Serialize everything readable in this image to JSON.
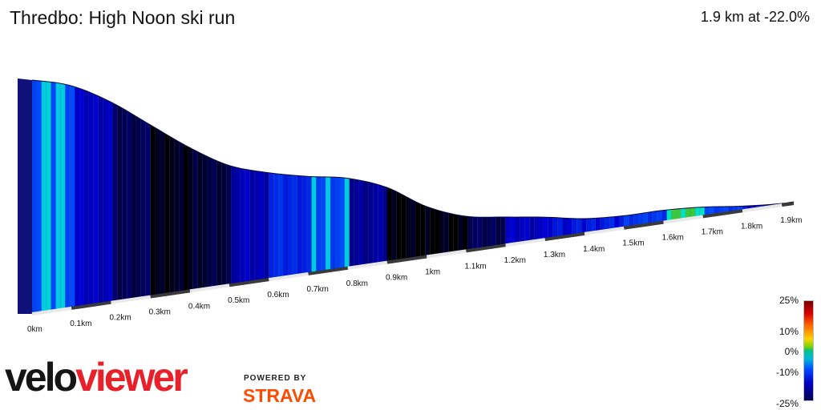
{
  "header": {
    "title": "Thredbo: High Noon ski run",
    "summary": "1.9 km at -22.0%"
  },
  "chart_data": {
    "type": "area",
    "title": "Thredbo: High Noon ski run",
    "xlabel": "",
    "ylabel": "",
    "x_unit": "km",
    "xlim": [
      0,
      1.93
    ],
    "x_ticks": [
      "0km",
      "0.1km",
      "0.2km",
      "0.3km",
      "0.4km",
      "0.5km",
      "0.6km",
      "0.7km",
      "0.8km",
      "0.9km",
      "1km",
      "1.1km",
      "1.2km",
      "1.3km",
      "1.4km",
      "1.5km",
      "1.6km",
      "1.7km",
      "1.8km",
      "1.9km"
    ],
    "distance_km": [
      0,
      0.1,
      0.2,
      0.3,
      0.4,
      0.5,
      0.6,
      0.7,
      0.8,
      0.9,
      1.0,
      1.1,
      1.2,
      1.3,
      1.4,
      1.5,
      1.6,
      1.7,
      1.8,
      1.9,
      1.93
    ],
    "relative_height": [
      1.0,
      0.985,
      0.91,
      0.79,
      0.66,
      0.55,
      0.5,
      0.47,
      0.45,
      0.37,
      0.2,
      0.09,
      0.05,
      0.01,
      -0.05,
      -0.07,
      -0.06,
      -0.08,
      -0.14,
      -0.185,
      -0.185
    ],
    "gradient_pct": [
      -3,
      -12,
      -20,
      -24,
      -22,
      -13,
      -8,
      -4,
      -15,
      -25,
      -25,
      -20,
      -12,
      -10,
      -9,
      -6,
      3,
      -5,
      -11,
      -6
    ],
    "color_scale": {
      "ticks": [
        "25%",
        "10%",
        "0%",
        "-10%",
        "-25%"
      ],
      "min": -25,
      "max": 25
    }
  },
  "branding": {
    "logo_part1": "velo",
    "logo_part2": "viewer",
    "powered_by": "POWERED BY",
    "partner": "STRAVA"
  }
}
